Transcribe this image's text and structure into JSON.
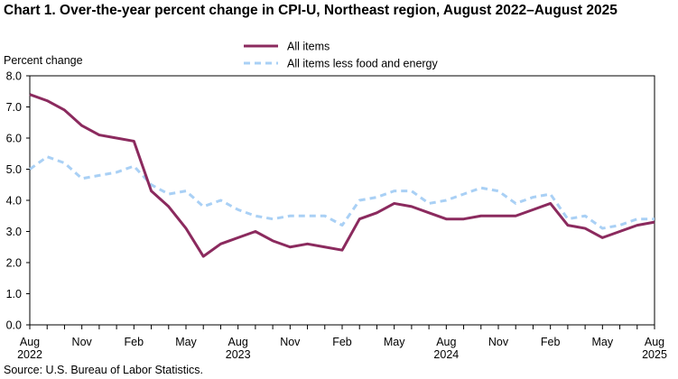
{
  "title": "Chart 1. Over-the-year percent change in CPI-U, Northeast region, August 2022–August  2025",
  "source": "Source: U.S. Bureau of Labor Statistics.",
  "chart_data": {
    "type": "line",
    "ylabel": "Percent change",
    "xlabel": "",
    "ylim": [
      0.0,
      8.0
    ],
    "yticks": [
      "0.0",
      "1.0",
      "2.0",
      "3.0",
      "4.0",
      "5.0",
      "6.0",
      "7.0",
      "8.0"
    ],
    "grid": false,
    "legend_position": "top-center",
    "x": [
      "Aug 2022",
      "Sep 2022",
      "Oct 2022",
      "Nov 2022",
      "Dec 2022",
      "Jan 2023",
      "Feb 2023",
      "Mar 2023",
      "Apr 2023",
      "May 2023",
      "Jun 2023",
      "Jul 2023",
      "Aug 2023",
      "Sep 2023",
      "Oct 2023",
      "Nov 2023",
      "Dec 2023",
      "Jan 2024",
      "Feb 2024",
      "Mar 2024",
      "Apr 2024",
      "May 2024",
      "Jun 2024",
      "Jul 2024",
      "Aug 2024",
      "Sep 2024",
      "Oct 2024",
      "Nov 2024",
      "Dec 2024",
      "Jan 2025",
      "Feb 2025",
      "Mar 2025",
      "Apr 2025",
      "May 2025",
      "Jun 2025",
      "Jul 2025",
      "Aug 2025"
    ],
    "xtick_labels": [
      {
        "month": "Aug",
        "year": "2022",
        "index": 0
      },
      {
        "month": "Nov",
        "year": "",
        "index": 3
      },
      {
        "month": "Feb",
        "year": "",
        "index": 6
      },
      {
        "month": "May",
        "year": "",
        "index": 9
      },
      {
        "month": "Aug",
        "year": "2023",
        "index": 12
      },
      {
        "month": "Nov",
        "year": "",
        "index": 15
      },
      {
        "month": "Feb",
        "year": "",
        "index": 18
      },
      {
        "month": "May",
        "year": "",
        "index": 21
      },
      {
        "month": "Aug",
        "year": "2024",
        "index": 24
      },
      {
        "month": "Nov",
        "year": "",
        "index": 27
      },
      {
        "month": "Feb",
        "year": "",
        "index": 30
      },
      {
        "month": "May",
        "year": "",
        "index": 33
      },
      {
        "month": "Aug",
        "year": "2025",
        "index": 36
      }
    ],
    "series": [
      {
        "name": "All items",
        "color": "#8b2a5e",
        "style": "solid",
        "values": [
          7.4,
          7.2,
          6.9,
          6.4,
          6.1,
          6.0,
          5.9,
          4.3,
          3.8,
          3.1,
          2.2,
          2.6,
          2.8,
          3.0,
          2.7,
          2.5,
          2.6,
          2.5,
          2.4,
          3.4,
          3.6,
          3.9,
          3.8,
          3.6,
          3.4,
          3.4,
          3.5,
          3.5,
          3.5,
          3.7,
          3.9,
          3.2,
          3.1,
          2.8,
          3.0,
          3.2,
          3.3
        ]
      },
      {
        "name": "All items less food and energy",
        "color": "#a9d0f5",
        "style": "dashed",
        "values": [
          5.0,
          5.4,
          5.2,
          4.7,
          4.8,
          4.9,
          5.1,
          4.5,
          4.2,
          4.3,
          3.8,
          4.0,
          3.7,
          3.5,
          3.4,
          3.5,
          3.5,
          3.5,
          3.2,
          4.0,
          4.1,
          4.3,
          4.3,
          3.9,
          4.0,
          4.2,
          4.4,
          4.3,
          3.9,
          4.1,
          4.2,
          3.4,
          3.5,
          3.1,
          3.2,
          3.4,
          3.4
        ]
      }
    ]
  }
}
